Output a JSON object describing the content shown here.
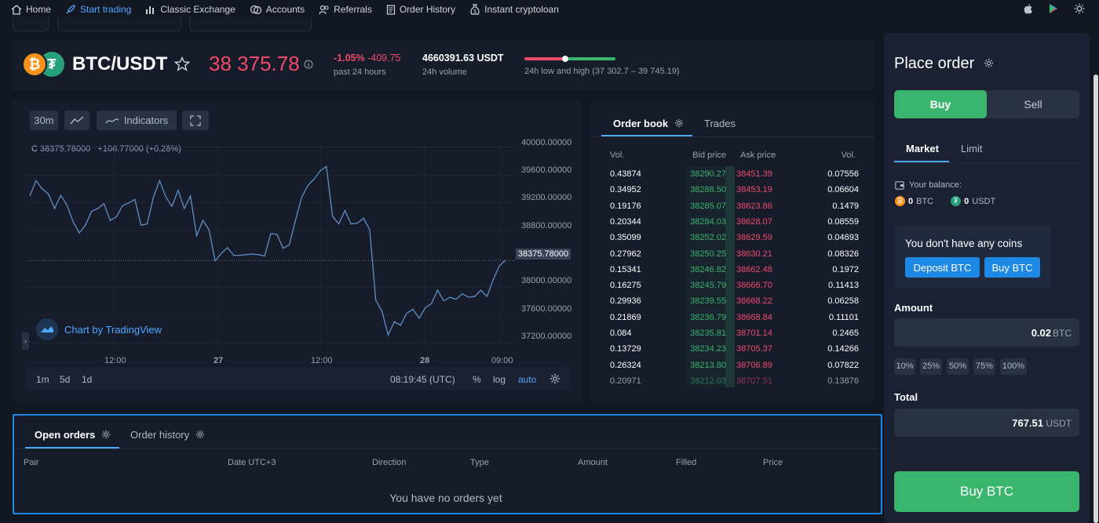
{
  "nav": {
    "items": [
      {
        "label": "Home",
        "icon": "home-icon"
      },
      {
        "label": "Start trading",
        "icon": "rocket-icon",
        "active": true
      },
      {
        "label": "Classic Exchange",
        "icon": "bar-chart-icon"
      },
      {
        "label": "Accounts",
        "icon": "coins-icon"
      },
      {
        "label": "Referrals",
        "icon": "users-icon"
      },
      {
        "label": "Order History",
        "icon": "document-icon"
      },
      {
        "label": "Instant cryptoloan",
        "icon": "money-bag-icon"
      }
    ]
  },
  "ticker": {
    "pair": "BTC/USDT",
    "price": "38 375.78",
    "change_pct": "-1.05%",
    "change_abs": "-409.75",
    "change_label": "past 24 hours",
    "volume": "4660391.63 USDT",
    "volume_label": "24h volume",
    "range_label": "24h low and high (37 302.7 – 39 745.19)",
    "range_position": 0.43,
    "colors": {
      "down": "#f04a6b",
      "up": "#3ab56d"
    }
  },
  "chart": {
    "interval": "30m",
    "indicators_label": "Indicators",
    "legend_close": "38375.78000",
    "legend_change": "+106.77000 (+0.28%)",
    "legend_prefix": "C",
    "attribution": "Chart by TradingView",
    "current_label": "38375.78000",
    "ranges": [
      "1m",
      "5d",
      "1d"
    ],
    "time": "08:19:45 (UTC)",
    "percent_label": "%",
    "log_label": "log",
    "auto_label": "auto"
  },
  "chart_data": {
    "type": "line",
    "ylim": [
      37100,
      40050
    ],
    "y_ticks": [
      "40000.00000",
      "39600.00000",
      "39200.00000",
      "38800.00000",
      "38000.00000",
      "37600.00000",
      "37200.00000"
    ],
    "x_ticks": [
      "12:00",
      "27",
      "12:00",
      "28",
      "09:00"
    ],
    "current_value": 38375.78,
    "values": [
      39300,
      39520,
      39400,
      39330,
      39120,
      39310,
      39170,
      38930,
      38770,
      38880,
      39080,
      39120,
      39190,
      38950,
      39000,
      39160,
      39200,
      39250,
      38880,
      38900,
      39280,
      39520,
      39290,
      39150,
      39380,
      39120,
      39300,
      38730,
      38950,
      38820,
      38370,
      38480,
      38560,
      38450,
      38450,
      38460,
      38470,
      38460,
      38440,
      38760,
      38750,
      38550,
      38600,
      38950,
      39280,
      39450,
      39540,
      39660,
      39720,
      39010,
      38900,
      39090,
      38900,
      38910,
      38980,
      38820,
      37810,
      37650,
      37310,
      37500,
      37450,
      37620,
      37680,
      37550,
      37700,
      37760,
      37950,
      37800,
      37850,
      37820,
      37900,
      37850,
      37860,
      37950,
      37860,
      38100,
      38300,
      38380
    ]
  },
  "orderbook": {
    "tabs": [
      "Order book",
      "Trades"
    ],
    "headers": {
      "vol": "Vol.",
      "bid": "Bid price",
      "ask": "Ask price",
      "vol2": "Vol."
    },
    "rows": [
      [
        "0.43874",
        "38290.27",
        "38451.39",
        "0.07556"
      ],
      [
        "0.34952",
        "38288.50",
        "38453.19",
        "0.06604"
      ],
      [
        "0.19176",
        "38285.07",
        "38623.86",
        "0.1479"
      ],
      [
        "0.20344",
        "38284.03",
        "38628.07",
        "0.08559"
      ],
      [
        "0.35099",
        "38252.02",
        "38629.59",
        "0.04693"
      ],
      [
        "0.27962",
        "38250.25",
        "38630.21",
        "0.08326"
      ],
      [
        "0.15341",
        "38246.82",
        "38662.48",
        "0.1972"
      ],
      [
        "0.16275",
        "38245.79",
        "38666.70",
        "0.11413"
      ],
      [
        "0.29936",
        "38239.55",
        "38668.22",
        "0.06258"
      ],
      [
        "0.21869",
        "38236.79",
        "38668.84",
        "0.11101"
      ],
      [
        "0.084",
        "38235.81",
        "38701.14",
        "0.2465"
      ],
      [
        "0.13729",
        "38234.23",
        "38705.37",
        "0.14266"
      ],
      [
        "0.26324",
        "38213.80",
        "38706.89",
        "0.07822"
      ],
      [
        "0.20971",
        "38212.03",
        "38707.51",
        "0.13876"
      ]
    ]
  },
  "orders": {
    "tabs": [
      "Open orders",
      "Order history"
    ],
    "columns": [
      "Pair",
      "Date UTC+3",
      "Direction",
      "Type",
      "Amount",
      "Filled",
      "Price"
    ],
    "empty": "You have no orders yet"
  },
  "place_order": {
    "title": "Place order",
    "buy": "Buy",
    "sell": "Sell",
    "tabs": [
      "Market",
      "Limit"
    ],
    "balance_label": "Your balance:",
    "btc_balance": "0",
    "btc_unit": "BTC",
    "usdt_balance": "0",
    "usdt_unit": "USDT",
    "no_coins": "You don't have any coins",
    "deposit": "Deposit BTC",
    "buy_btc_small": "Buy BTC",
    "amount_label": "Amount",
    "amount_value": "0.02",
    "amount_unit": "BTC",
    "percents": [
      "10%",
      "25%",
      "50%",
      "75%",
      "100%"
    ],
    "total_label": "Total",
    "total_value": "767.51",
    "total_unit": "USDT",
    "submit": "Buy BTC"
  }
}
